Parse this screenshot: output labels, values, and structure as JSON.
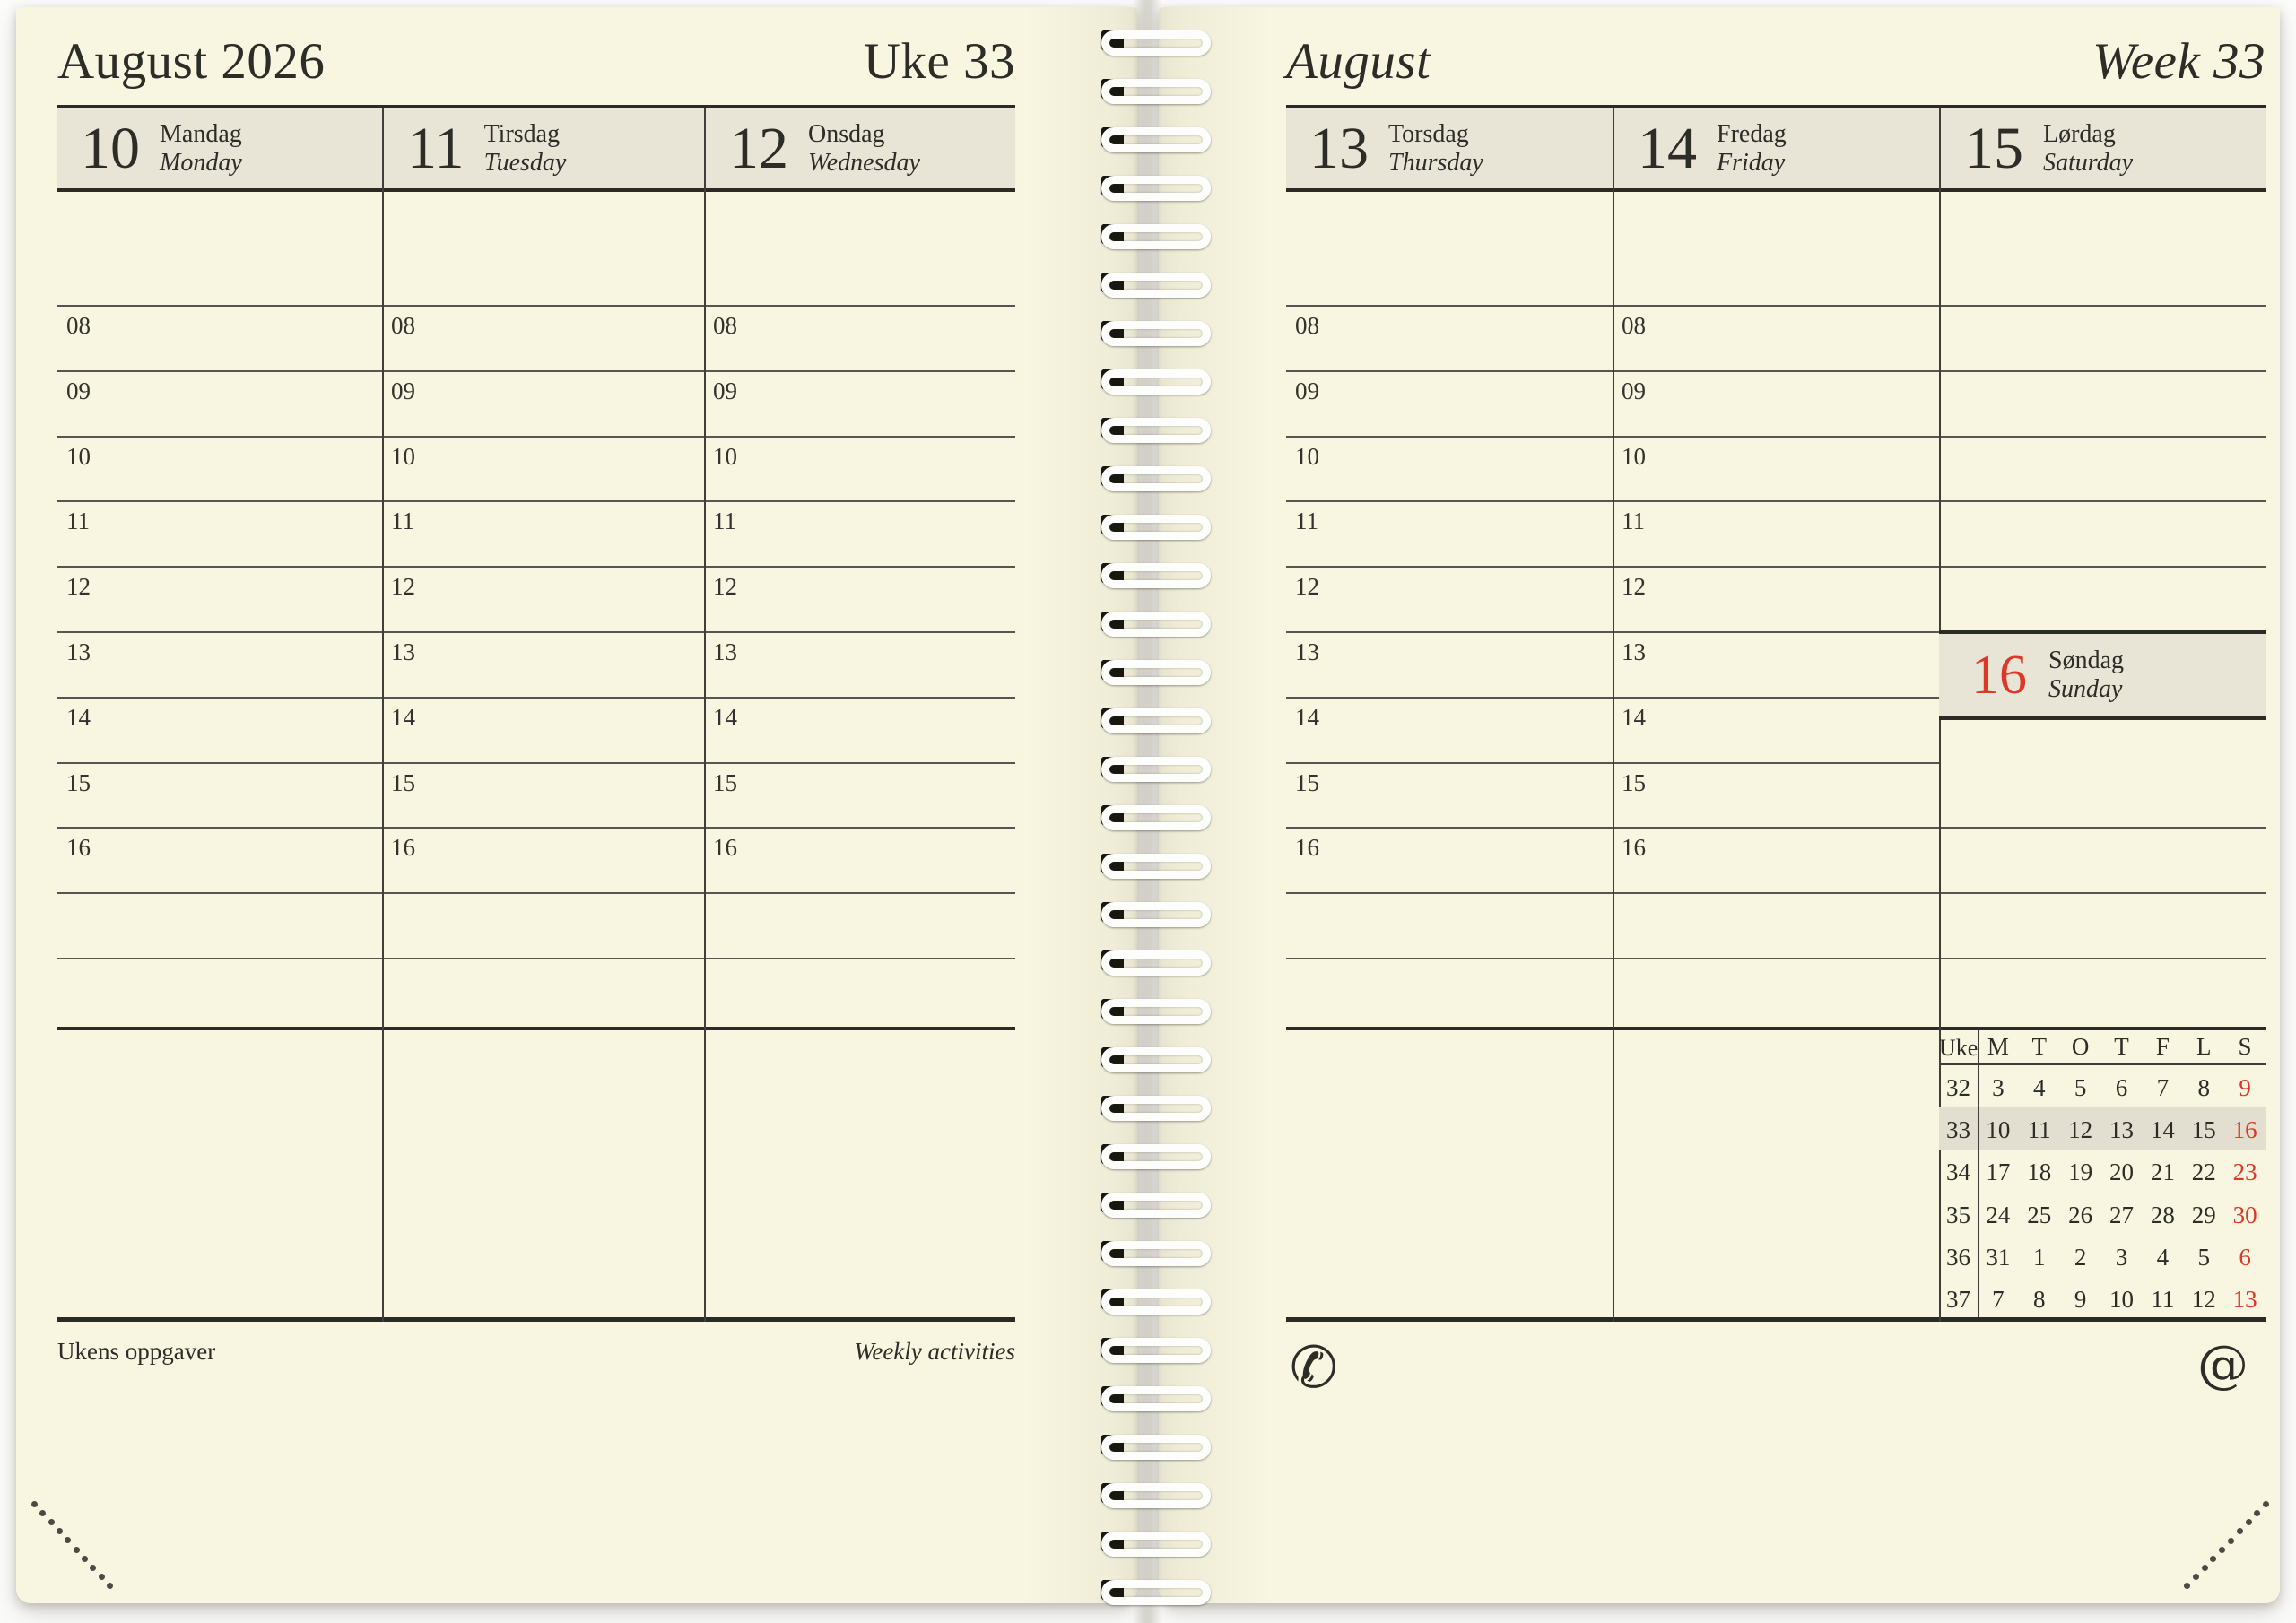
{
  "colors": {
    "paper": "#f8f5e0",
    "header_band": "#e8e5d7",
    "highlight_row": "#e2dfd1",
    "accent_red": "#dd3827",
    "ink": "#2d2c27"
  },
  "page_left": {
    "title": "August 2026",
    "week_label": "Uke 33",
    "days": [
      {
        "number": "10",
        "name": "Mandag",
        "name_en": "Monday"
      },
      {
        "number": "11",
        "name": "Tirsdag",
        "name_en": "Tuesday"
      },
      {
        "number": "12",
        "name": "Onsdag",
        "name_en": "Wednesday"
      }
    ],
    "hours": [
      "08",
      "09",
      "10",
      "11",
      "12",
      "13",
      "14",
      "15",
      "16"
    ],
    "footer_left": "Ukens oppgaver",
    "footer_right": "Weekly activities"
  },
  "page_right": {
    "title": "August",
    "week_label": "Week 33",
    "days": [
      {
        "number": "13",
        "name": "Torsdag",
        "name_en": "Thursday"
      },
      {
        "number": "14",
        "name": "Fredag",
        "name_en": "Friday"
      },
      {
        "number": "15",
        "name": "Lørdag",
        "name_en": "Saturday"
      }
    ],
    "sunday": {
      "number": "16",
      "name": "Søndag",
      "name_en": "Sunday"
    },
    "hours": [
      "08",
      "09",
      "10",
      "11",
      "12",
      "13",
      "14",
      "15",
      "16"
    ],
    "phone_glyph": "✆",
    "at_glyph": "@",
    "mini_calendar": {
      "week_col_header": "Uke",
      "day_headers": [
        "M",
        "T",
        "O",
        "T",
        "F",
        "L",
        "S"
      ],
      "highlight_week": "33",
      "weeks": [
        {
          "week": "32",
          "days": [
            "3",
            "4",
            "5",
            "6",
            "7",
            "8",
            "9"
          ]
        },
        {
          "week": "33",
          "days": [
            "10",
            "11",
            "12",
            "13",
            "14",
            "15",
            "16"
          ]
        },
        {
          "week": "34",
          "days": [
            "17",
            "18",
            "19",
            "20",
            "21",
            "22",
            "23"
          ]
        },
        {
          "week": "35",
          "days": [
            "24",
            "25",
            "26",
            "27",
            "28",
            "29",
            "30"
          ]
        },
        {
          "week": "36",
          "days": [
            "31",
            "1",
            "2",
            "3",
            "4",
            "5",
            "6"
          ]
        },
        {
          "week": "37",
          "days": [
            "7",
            "8",
            "9",
            "10",
            "11",
            "12",
            "13"
          ]
        }
      ]
    }
  }
}
